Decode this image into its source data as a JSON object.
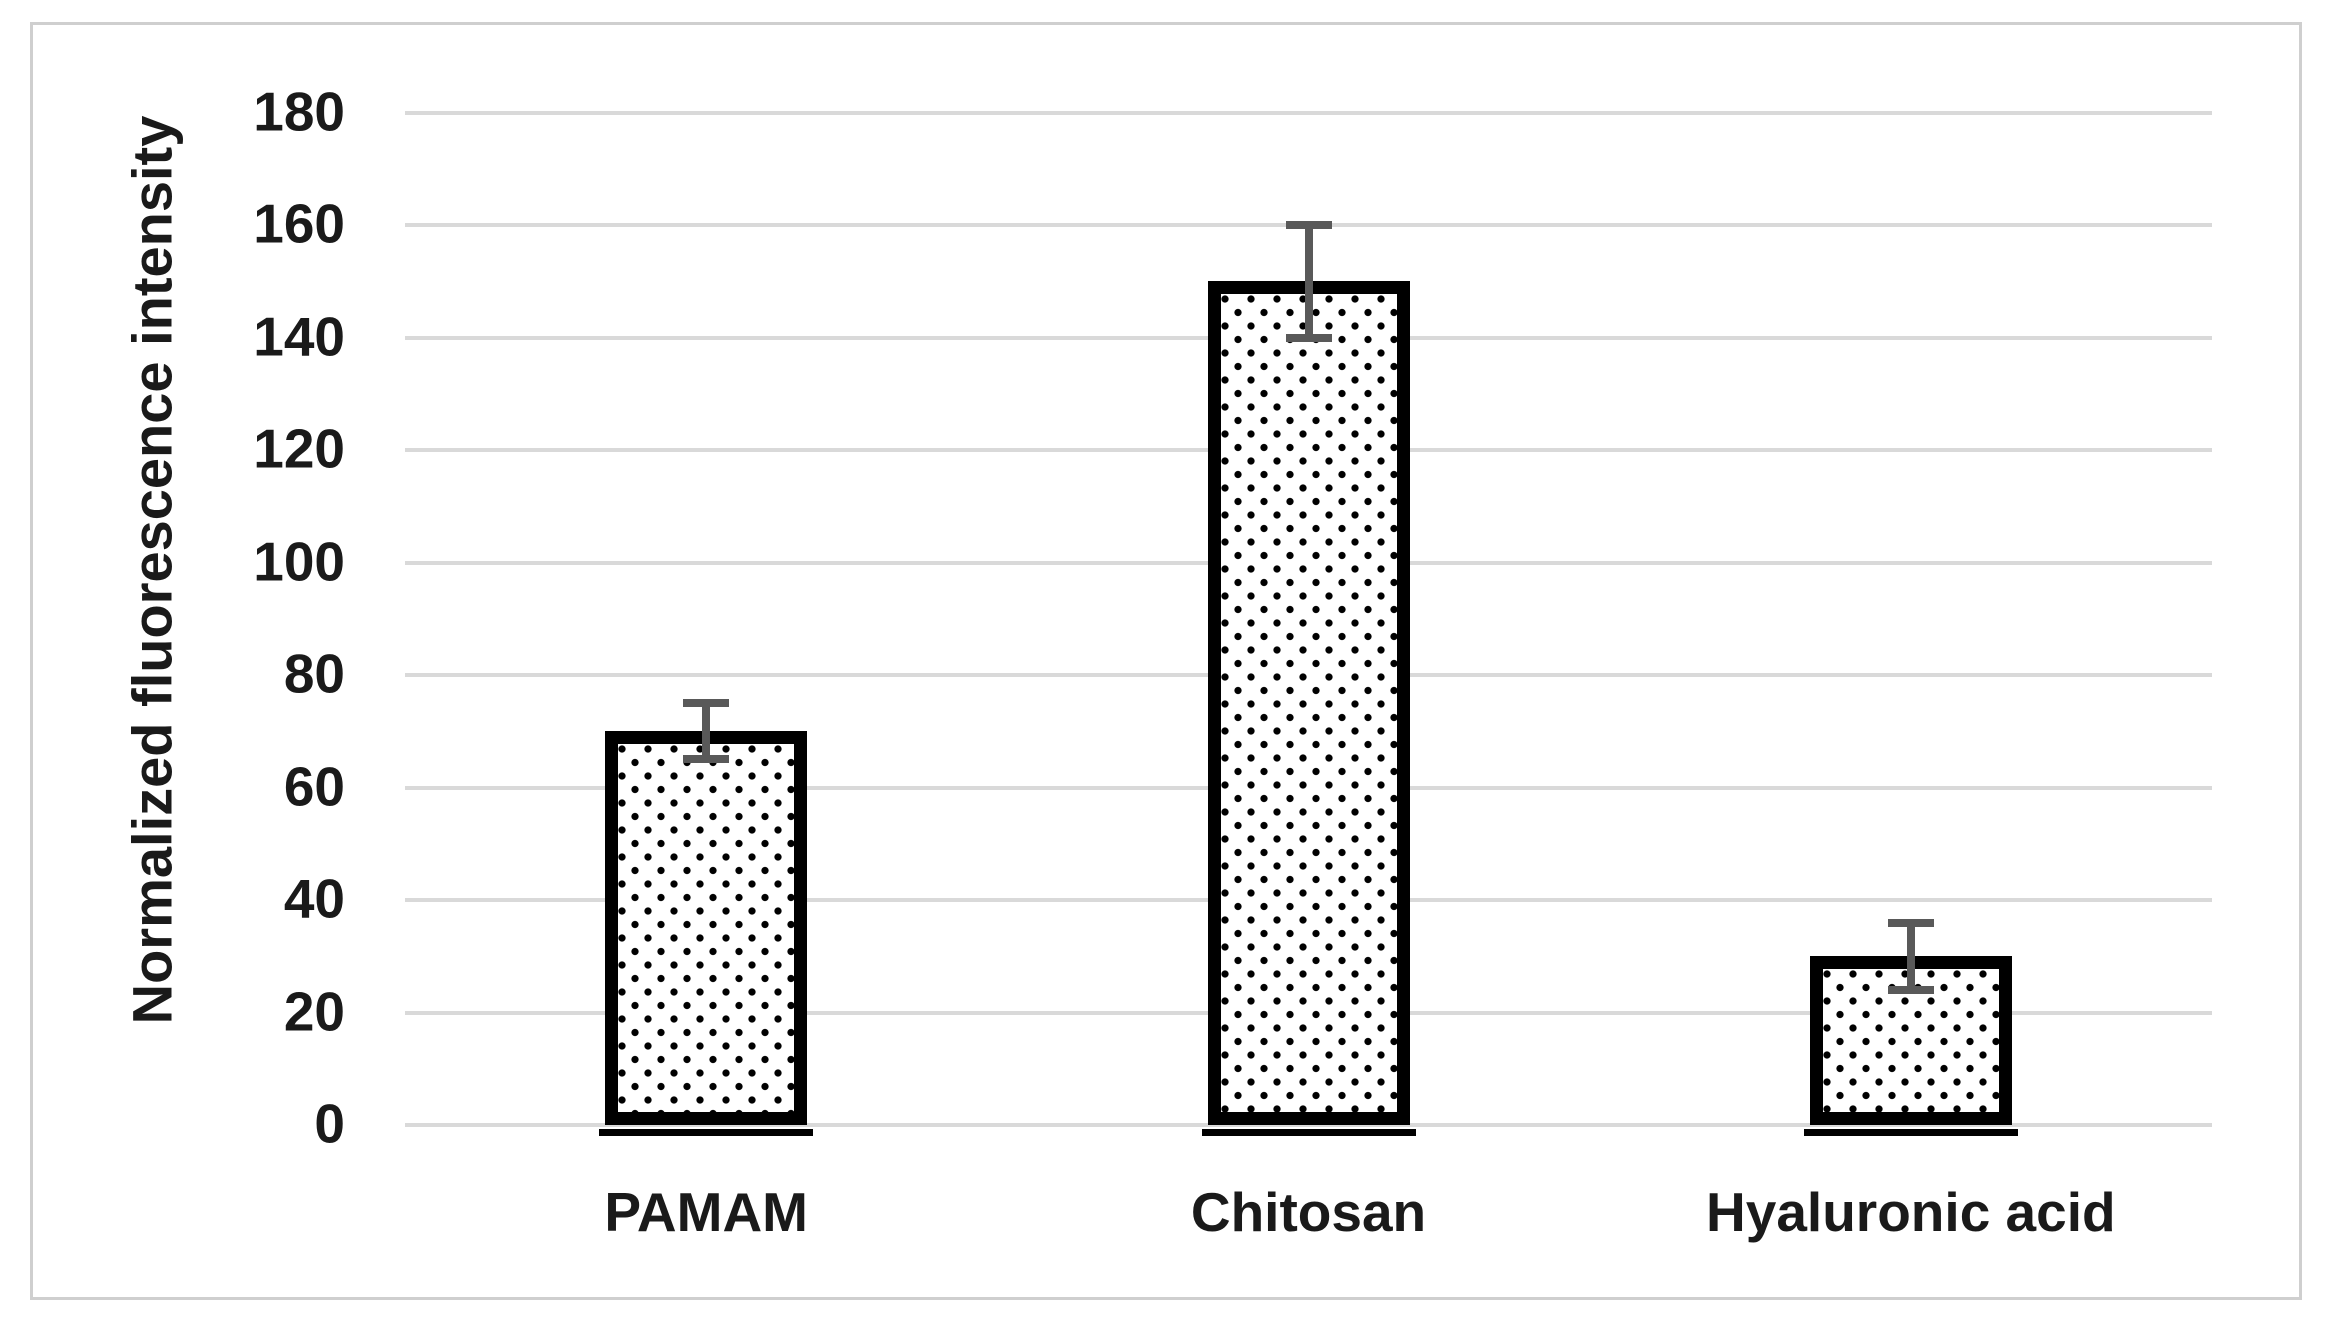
{
  "chart_data": {
    "type": "bar",
    "title": "",
    "ylabel": "Normalized fluorescence intensity",
    "xlabel": "",
    "categories": [
      "PAMAM",
      "Chitosan",
      "Hyaluronic acid"
    ],
    "values": [
      70,
      150,
      30
    ],
    "error_bars": [
      5,
      10,
      6
    ],
    "ylim": [
      0,
      180
    ],
    "yticks": [
      0,
      20,
      40,
      60,
      80,
      100,
      120,
      140,
      160,
      180
    ],
    "grid": "horizontal",
    "legend_position": "none",
    "bar_style": {
      "fill": "#ffffff",
      "pattern": "black-dot-grid",
      "dot_color": "#000000",
      "border_color": "#000000"
    },
    "colors": {
      "gridline": "#d9d9d9",
      "error_bar": "#595959",
      "text": "#1a1a1a",
      "chart_border": "#cfcfcf",
      "background": "#ffffff"
    }
  }
}
